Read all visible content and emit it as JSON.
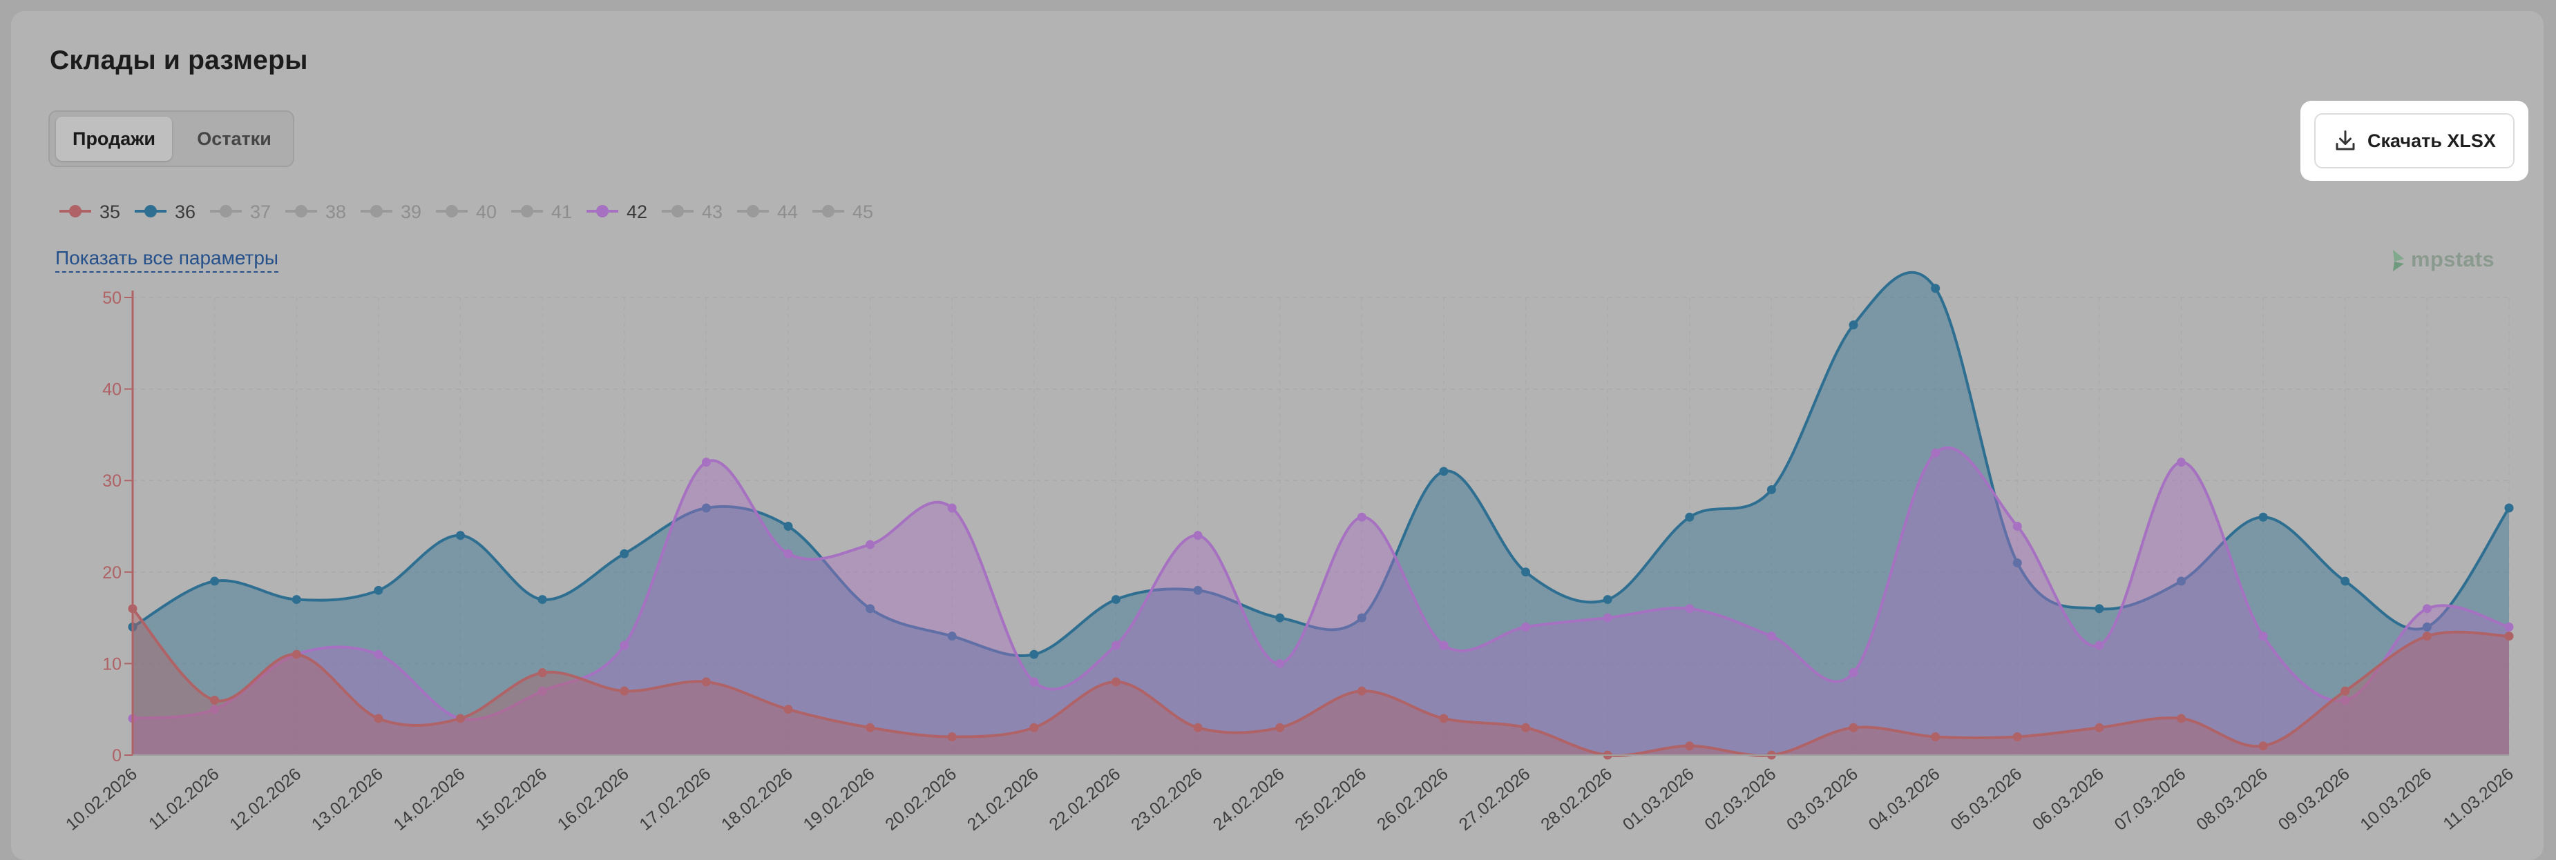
{
  "section_title": "Склады и размеры",
  "tabs": [
    {
      "label": "Продажи",
      "active": true
    },
    {
      "label": "Остатки",
      "active": false
    }
  ],
  "download_button": {
    "label": "Скачать XLSX",
    "icon": "download-icon"
  },
  "legend": [
    {
      "label": "35",
      "active": true,
      "color": "#b06366"
    },
    {
      "label": "36",
      "active": true,
      "color": "#2e6f91"
    },
    {
      "label": "37",
      "active": false,
      "color": "#9a9a9a"
    },
    {
      "label": "38",
      "active": false,
      "color": "#9a9a9a"
    },
    {
      "label": "39",
      "active": false,
      "color": "#9a9a9a"
    },
    {
      "label": "40",
      "active": false,
      "color": "#9a9a9a"
    },
    {
      "label": "41",
      "active": false,
      "color": "#9a9a9a"
    },
    {
      "label": "42",
      "active": true,
      "color": "#a771c2"
    },
    {
      "label": "43",
      "active": false,
      "color": "#9a9a9a"
    },
    {
      "label": "44",
      "active": false,
      "color": "#9a9a9a"
    },
    {
      "label": "45",
      "active": false,
      "color": "#9a9a9a"
    }
  ],
  "show_all_link": "Показать все параметры",
  "brand_watermark": "mpstats",
  "chart_data": {
    "type": "area",
    "x": [
      "10.02.2026",
      "11.02.2026",
      "12.02.2026",
      "13.02.2026",
      "14.02.2026",
      "15.02.2026",
      "16.02.2026",
      "17.02.2026",
      "18.02.2026",
      "19.02.2026",
      "20.02.2026",
      "21.02.2026",
      "22.02.2026",
      "23.02.2026",
      "24.02.2026",
      "25.02.2026",
      "26.02.2026",
      "27.02.2026",
      "28.02.2026",
      "01.03.2026",
      "02.03.2026",
      "03.03.2026",
      "04.03.2026",
      "05.03.2026",
      "06.03.2026",
      "07.03.2026",
      "08.03.2026",
      "09.03.2026",
      "10.03.2026",
      "11.03.2026"
    ],
    "series": [
      {
        "name": "36",
        "color": "#2e6f91",
        "values": [
          14,
          19,
          17,
          18,
          24,
          17,
          22,
          27,
          25,
          16,
          13,
          11,
          17,
          18,
          15,
          15,
          31,
          20,
          17,
          26,
          29,
          47,
          51,
          21,
          16,
          19,
          26,
          19,
          14,
          27
        ]
      },
      {
        "name": "42",
        "color": "#a771c2",
        "values": [
          4,
          5,
          11,
          11,
          4,
          7,
          12,
          32,
          22,
          23,
          27,
          8,
          12,
          24,
          10,
          26,
          12,
          14,
          15,
          16,
          13,
          9,
          33,
          25,
          12,
          32,
          13,
          6,
          16,
          14
        ]
      },
      {
        "name": "35",
        "color": "#b06366",
        "values": [
          16,
          6,
          11,
          4,
          4,
          9,
          7,
          8,
          5,
          3,
          2,
          3,
          8,
          3,
          3,
          7,
          4,
          3,
          0,
          1,
          0,
          3,
          2,
          2,
          3,
          4,
          1,
          7,
          13,
          13
        ]
      }
    ],
    "y_ticks": [
      0,
      10,
      20,
      30,
      40,
      50
    ],
    "ylim": [
      0,
      50
    ],
    "y_axis_color": "#b06366",
    "grid": true,
    "legend_position": "top-left"
  }
}
